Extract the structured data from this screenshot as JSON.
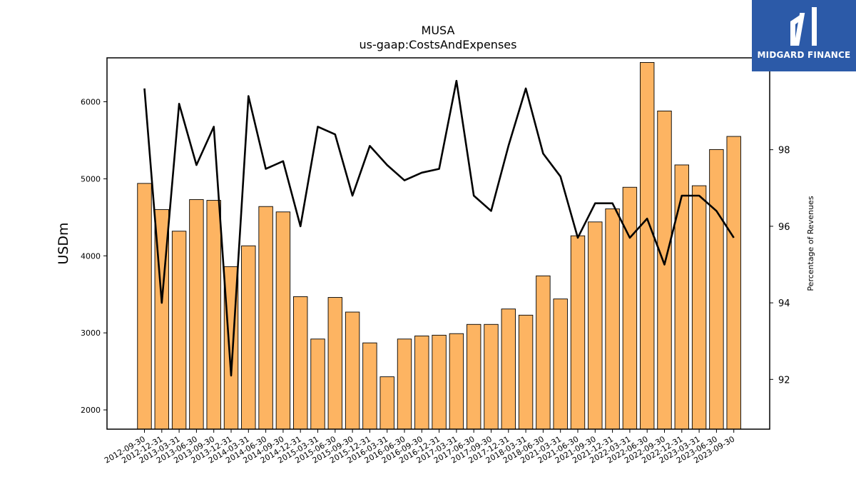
{
  "brand": {
    "name": "MIDGARD FINANCE",
    "logo_icon": "midgard-finance-logo-icon",
    "color": "#2c5aa8"
  },
  "chart_data": {
    "type": "bar",
    "title": "MUSA",
    "subtitle": "us-gaap:CostsAndExpenses",
    "ylabel": "USDm",
    "y2label": "Percentage of Revenues",
    "ylim": [
      1750,
      6570
    ],
    "y2lim": [
      90.7,
      100.4
    ],
    "yticks": [
      2000,
      3000,
      4000,
      5000,
      6000
    ],
    "y2ticks": [
      92,
      94,
      96,
      98
    ],
    "bar_color": "#fdb462",
    "line_color": "#000000",
    "categories": [
      "2012-09-30",
      "2012-12-31",
      "2013-03-31",
      "2013-06-30",
      "2013-09-30",
      "2013-12-31",
      "2014-03-31",
      "2014-06-30",
      "2014-09-30",
      "2014-12-31",
      "2015-03-31",
      "2015-06-30",
      "2015-09-30",
      "2015-12-31",
      "2016-03-31",
      "2016-06-30",
      "2016-09-30",
      "2016-12-31",
      "2017-03-31",
      "2017-06-30",
      "2017-09-30",
      "2017-12-31",
      "2018-03-31",
      "2018-06-30",
      "2021-03-31",
      "2021-06-30",
      "2021-09-30",
      "2021-12-31",
      "2022-03-31",
      "2022-06-30",
      "2022-09-30",
      "2022-12-31",
      "2023-03-31",
      "2023-06-30",
      "2023-09-30"
    ],
    "series": [
      {
        "type": "bar",
        "axis": "left",
        "values": [
          4940,
          4600,
          4320,
          4730,
          4720,
          3860,
          4130,
          4640,
          4570,
          3470,
          2920,
          3460,
          3270,
          2870,
          2430,
          2920,
          2960,
          2970,
          2990,
          3110,
          3110,
          3310,
          3230,
          3740,
          3440,
          4260,
          4440,
          4610,
          4890,
          6510,
          5880,
          5180,
          4910,
          5380,
          5550
        ]
      },
      {
        "type": "line",
        "axis": "right",
        "values": [
          99.6,
          94.0,
          99.2,
          97.6,
          98.6,
          92.1,
          99.4,
          97.5,
          97.7,
          96.0,
          98.6,
          98.4,
          96.8,
          98.1,
          97.6,
          97.2,
          97.4,
          97.5,
          99.8,
          96.8,
          96.4,
          98.1,
          99.6,
          97.9,
          97.3,
          95.7,
          96.6,
          96.6,
          95.7,
          96.2,
          95.0,
          96.8,
          96.8,
          96.4,
          95.7
        ]
      }
    ]
  }
}
